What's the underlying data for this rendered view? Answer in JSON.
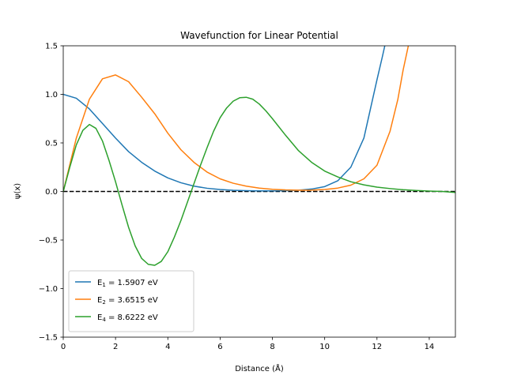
{
  "chart_data": {
    "type": "line",
    "title": "Wavefunction for Linear Potential",
    "xlabel": "Distance (Å)",
    "ylabel": "ψ(x)",
    "xlim": [
      0,
      15
    ],
    "ylim": [
      -1.5,
      1.5
    ],
    "xticks": [
      "0",
      "2",
      "4",
      "6",
      "8",
      "10",
      "12",
      "14"
    ],
    "yticks": [
      "−1.5",
      "−1.0",
      "−0.5",
      "0.0",
      "0.5",
      "1.0",
      "1.5"
    ],
    "grid": false,
    "legend_position": "lower-left",
    "reference_line": {
      "y": 0,
      "style": "dashed",
      "color": "#000000"
    },
    "series": [
      {
        "name": "E1 = 1.5907 eV",
        "label_main": "E",
        "label_sub": "1",
        "label_rest": " = 1.5907 eV",
        "color": "#1f77b4",
        "x": [
          0,
          0.5,
          1.0,
          1.5,
          2.0,
          2.5,
          3.0,
          3.5,
          4.0,
          4.5,
          5.0,
          5.5,
          6.0,
          6.5,
          7.0,
          7.5,
          8.0,
          8.5,
          9.0,
          9.5,
          10.0,
          10.5,
          11.0,
          11.5,
          11.75,
          12.0,
          12.2,
          12.3
        ],
        "y": [
          1.0,
          0.96,
          0.85,
          0.7,
          0.55,
          0.41,
          0.3,
          0.21,
          0.14,
          0.09,
          0.055,
          0.033,
          0.02,
          0.012,
          0.008,
          0.006,
          0.006,
          0.008,
          0.013,
          0.025,
          0.05,
          0.11,
          0.25,
          0.55,
          0.85,
          1.15,
          1.38,
          1.5
        ]
      },
      {
        "name": "E2 = 3.6515 eV",
        "label_main": "E",
        "label_sub": "2",
        "label_rest": " = 3.6515 eV",
        "color": "#ff7f0e",
        "x": [
          0,
          0.5,
          1.0,
          1.5,
          2.0,
          2.5,
          3.0,
          3.5,
          4.0,
          4.5,
          5.0,
          5.5,
          6.0,
          6.5,
          7.0,
          7.5,
          8.0,
          8.5,
          9.0,
          9.5,
          10.0,
          10.5,
          11.0,
          11.5,
          12.0,
          12.5,
          12.8,
          13.0,
          13.2
        ],
        "y": [
          0.0,
          0.55,
          0.95,
          1.16,
          1.2,
          1.13,
          0.97,
          0.8,
          0.6,
          0.43,
          0.3,
          0.2,
          0.13,
          0.085,
          0.055,
          0.035,
          0.022,
          0.016,
          0.013,
          0.014,
          0.02,
          0.035,
          0.065,
          0.13,
          0.27,
          0.62,
          0.95,
          1.25,
          1.5
        ]
      },
      {
        "name": "E4 = 8.6222 eV",
        "label_main": "E",
        "label_sub": "4",
        "label_rest": " = 8.6222 eV",
        "color": "#2ca02c",
        "x": [
          0,
          0.25,
          0.5,
          0.75,
          1.0,
          1.25,
          1.5,
          1.75,
          2.0,
          2.25,
          2.5,
          2.75,
          3.0,
          3.25,
          3.5,
          3.75,
          4.0,
          4.25,
          4.5,
          4.75,
          5.0,
          5.25,
          5.5,
          5.75,
          6.0,
          6.25,
          6.5,
          6.75,
          7.0,
          7.25,
          7.5,
          7.75,
          8.0,
          8.5,
          9.0,
          9.5,
          10.0,
          10.5,
          11.0,
          11.5,
          12.0,
          12.5,
          13.0,
          13.5,
          14.0,
          14.5,
          15.0
        ],
        "y": [
          0.0,
          0.25,
          0.48,
          0.63,
          0.69,
          0.65,
          0.52,
          0.32,
          0.1,
          -0.14,
          -0.37,
          -0.56,
          -0.69,
          -0.75,
          -0.76,
          -0.72,
          -0.62,
          -0.47,
          -0.3,
          -0.11,
          0.08,
          0.27,
          0.45,
          0.62,
          0.76,
          0.86,
          0.93,
          0.965,
          0.97,
          0.95,
          0.9,
          0.83,
          0.75,
          0.58,
          0.42,
          0.3,
          0.21,
          0.15,
          0.1,
          0.068,
          0.045,
          0.03,
          0.018,
          0.01,
          0.004,
          0.0,
          -0.01
        ]
      }
    ]
  }
}
